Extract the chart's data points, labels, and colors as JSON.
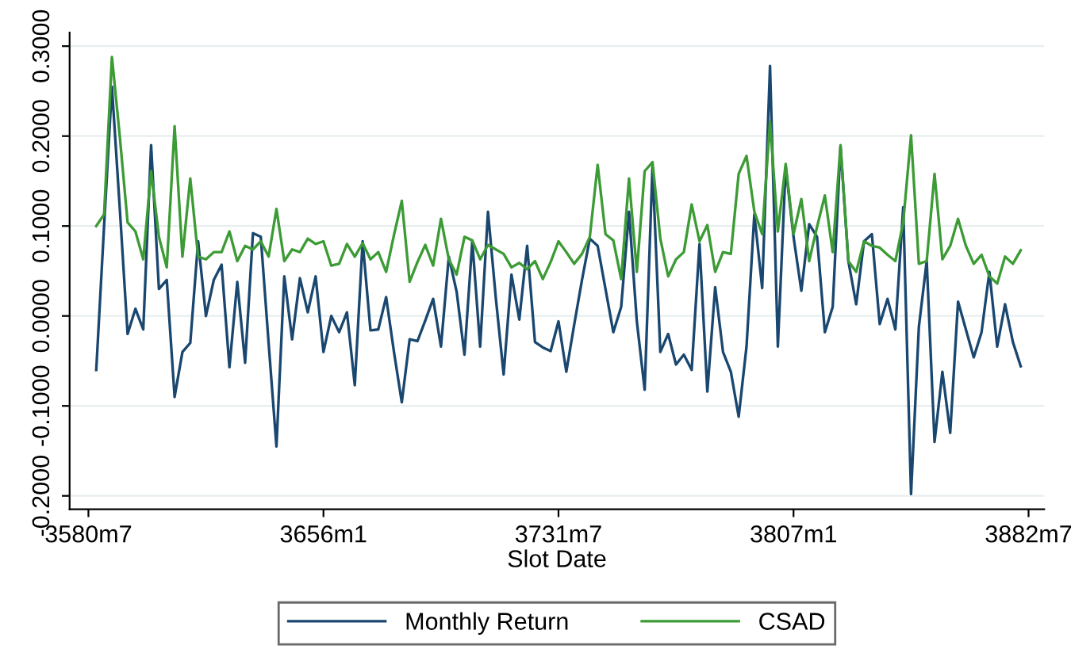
{
  "chart_data": {
    "type": "line",
    "xlabel": "Slot Date",
    "categories": [
      "3580m7",
      null,
      null,
      null,
      null,
      null,
      null,
      null,
      null,
      null,
      null,
      null,
      null,
      null,
      null,
      null,
      null,
      null,
      null,
      null,
      null,
      null,
      null,
      null,
      null,
      null,
      null,
      null,
      null,
      null,
      "3656m1",
      null,
      null,
      null,
      null,
      null,
      null,
      null,
      null,
      null,
      null,
      null,
      null,
      null,
      null,
      null,
      null,
      null,
      null,
      null,
      null,
      null,
      null,
      null,
      null,
      null,
      null,
      null,
      null,
      null,
      "3731m7",
      null,
      null,
      null,
      null,
      null,
      null,
      null,
      null,
      null,
      null,
      null,
      null,
      null,
      null,
      null,
      null,
      null,
      null,
      null,
      null,
      null,
      null,
      null,
      null,
      null,
      null,
      null,
      null,
      null,
      "3807m1",
      null,
      null,
      null,
      null,
      null,
      null,
      null,
      null,
      null,
      null,
      null,
      null,
      null,
      null,
      null,
      null,
      null,
      null,
      null,
      null,
      null,
      null,
      null,
      null,
      null,
      null,
      null,
      null,
      null,
      "3882m7"
    ],
    "ylim": [
      -0.215,
      0.315
    ],
    "yticks": [
      {
        "value": -0.2,
        "label": "-0.2000"
      },
      {
        "value": -0.1,
        "label": "-0.1000"
      },
      {
        "value": 0,
        "label": "0.0000"
      },
      {
        "value": 0.1,
        "label": "0.1000"
      },
      {
        "value": 0.2,
        "label": "0.2000"
      },
      {
        "value": 0.3,
        "label": "0.3000"
      }
    ],
    "grid": "y",
    "legend": "bottom",
    "marker": "none",
    "line_style": "solid",
    "series": [
      {
        "name": "Monthly Return",
        "color": "#1a476f",
        "values": [
          null,
          -0.06,
          0.1,
          0.255,
          0.12,
          -0.02,
          0.008,
          -0.015,
          0.19,
          0.03,
          0.04,
          -0.09,
          -0.04,
          -0.03,
          0.083,
          0.0,
          0.04,
          0.057,
          -0.057,
          0.038,
          -0.052,
          0.092,
          0.088,
          -0.03,
          -0.145,
          0.044,
          -0.026,
          0.042,
          0.004,
          0.044,
          -0.04,
          0.0,
          -0.018,
          0.004,
          -0.077,
          0.083,
          -0.016,
          -0.015,
          0.021,
          -0.04,
          -0.096,
          -0.026,
          -0.028,
          -0.005,
          0.019,
          -0.034,
          0.066,
          0.027,
          -0.043,
          0.083,
          -0.034,
          0.116,
          0.02,
          -0.065,
          0.046,
          -0.004,
          0.078,
          -0.029,
          -0.035,
          -0.039,
          -0.006,
          -0.062,
          -0.01,
          0.04,
          0.086,
          0.078,
          0.03,
          -0.018,
          0.01,
          0.116,
          -0.006,
          -0.082,
          0.166,
          -0.04,
          -0.02,
          -0.054,
          -0.043,
          -0.06,
          0.08,
          -0.084,
          0.032,
          -0.04,
          -0.062,
          -0.112,
          -0.034,
          0.113,
          0.031,
          0.278,
          -0.034,
          0.166,
          0.088,
          0.028,
          0.102,
          0.088,
          -0.018,
          0.01,
          0.188,
          0.061,
          0.013,
          0.083,
          0.091,
          -0.009,
          0.019,
          -0.015,
          0.121,
          -0.198,
          -0.012,
          0.061,
          -0.14,
          -0.062,
          -0.13,
          0.016,
          -0.015,
          -0.046,
          -0.018,
          0.049,
          -0.034,
          0.013,
          -0.029,
          -0.056,
          null
        ]
      },
      {
        "name": "CSAD",
        "color": "#3c9b35",
        "values": [
          null,
          0.1,
          0.113,
          0.288,
          0.2,
          0.104,
          0.094,
          0.063,
          0.161,
          0.088,
          0.054,
          0.211,
          0.066,
          0.153,
          0.066,
          0.063,
          0.071,
          0.071,
          0.094,
          0.061,
          0.078,
          0.074,
          0.083,
          0.066,
          0.119,
          0.061,
          0.074,
          0.071,
          0.086,
          0.08,
          0.083,
          0.056,
          0.058,
          0.08,
          0.066,
          0.081,
          0.063,
          0.071,
          0.049,
          0.09,
          0.128,
          0.038,
          0.06,
          0.079,
          0.056,
          0.108,
          0.063,
          0.046,
          0.088,
          0.084,
          0.063,
          0.079,
          0.074,
          0.069,
          0.054,
          0.059,
          0.052,
          0.061,
          0.041,
          0.06,
          0.083,
          0.071,
          0.058,
          0.069,
          0.088,
          0.168,
          0.091,
          0.084,
          0.041,
          0.153,
          0.049,
          0.161,
          0.171,
          0.086,
          0.044,
          0.063,
          0.071,
          0.124,
          0.083,
          0.101,
          0.049,
          0.071,
          0.069,
          0.158,
          0.178,
          0.116,
          0.091,
          0.216,
          0.094,
          0.169,
          0.091,
          0.13,
          0.061,
          0.099,
          0.134,
          0.071,
          0.19,
          0.061,
          0.049,
          0.083,
          0.078,
          0.076,
          0.068,
          0.061,
          0.104,
          0.201,
          0.058,
          0.061,
          0.158,
          0.063,
          0.078,
          0.108,
          0.078,
          0.058,
          0.068,
          0.044,
          0.036,
          0.066,
          0.058,
          0.073,
          null
        ]
      }
    ]
  }
}
